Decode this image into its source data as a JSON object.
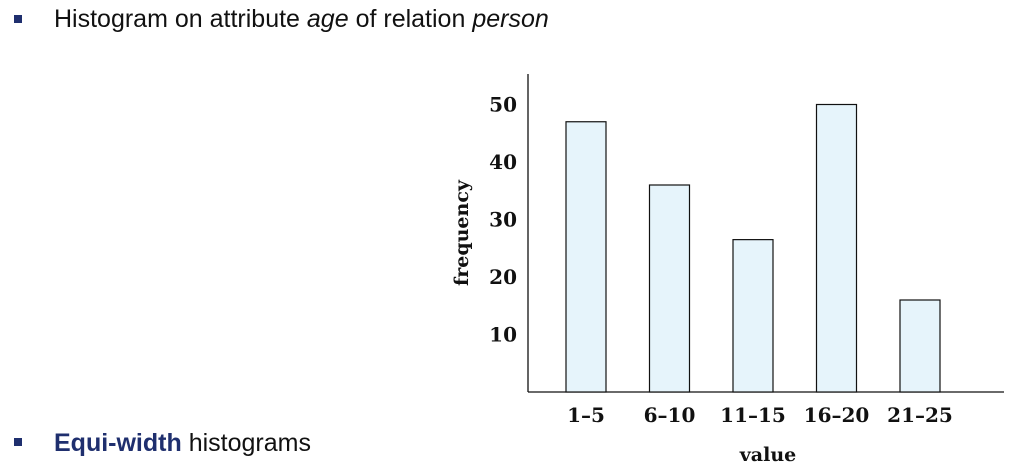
{
  "slide": {
    "bullet1": {
      "text_before": "Histogram on attribute ",
      "italic1": "age",
      "text_middle": " of relation ",
      "italic2": "person"
    },
    "bullet2": {
      "bold_text": "Equi-width",
      "text_after": " histograms"
    }
  },
  "colors": {
    "bullet": "#1f2f6e",
    "bar_fill": "#e6f4fb",
    "bar_stroke": "#111111",
    "axis": "#111111"
  },
  "chart_data": {
    "type": "bar",
    "categories": [
      "1–5",
      "6–10",
      "11–15",
      "16–20",
      "21–25"
    ],
    "values": [
      47,
      36,
      26.5,
      50,
      16
    ],
    "xlabel": "value",
    "ylabel": "frequency",
    "yticks": [
      10,
      20,
      30,
      40,
      50
    ],
    "ylim": [
      0,
      55
    ],
    "grid": false,
    "legend": "none"
  }
}
